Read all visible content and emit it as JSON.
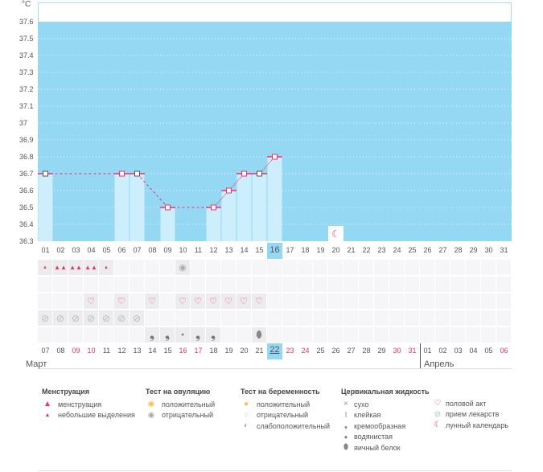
{
  "chart": {
    "unit": "°C",
    "y_ticks": [
      "37.6",
      "37.5",
      "37.4",
      "37.3",
      "37.2",
      "37.1",
      "37",
      "36.9",
      "36.8",
      "36.7",
      "36.6",
      "36.5",
      "36.4",
      "36.3"
    ],
    "days": [
      "01",
      "02",
      "03",
      "04",
      "05",
      "06",
      "07",
      "08",
      "09",
      "10",
      "11",
      "12",
      "13",
      "14",
      "15",
      "16",
      "17",
      "18",
      "19",
      "20",
      "21",
      "22",
      "23",
      "24",
      "25",
      "26",
      "27",
      "28",
      "29",
      "30",
      "31"
    ],
    "selected_day": "16",
    "temps": {
      "01": 36.7,
      "06": 36.7,
      "07": 36.7,
      "09": 36.5,
      "12": 36.5,
      "13": 36.6,
      "14": 36.7,
      "15": 36.7,
      "16": 36.8
    },
    "moon_day": "20"
  },
  "grid": {
    "dates": [
      {
        "d": "07"
      },
      {
        "d": "08"
      },
      {
        "d": "09",
        "red": true
      },
      {
        "d": "10",
        "red": true
      },
      {
        "d": "11"
      },
      {
        "d": "12"
      },
      {
        "d": "13"
      },
      {
        "d": "14"
      },
      {
        "d": "15"
      },
      {
        "d": "16",
        "red": true
      },
      {
        "d": "17",
        "red": true
      },
      {
        "d": "18"
      },
      {
        "d": "19"
      },
      {
        "d": "20"
      },
      {
        "d": "21"
      },
      {
        "d": "22",
        "sel": true
      },
      {
        "d": "23",
        "red": true
      },
      {
        "d": "24",
        "red": true
      },
      {
        "d": "25"
      },
      {
        "d": "26"
      },
      {
        "d": "27"
      },
      {
        "d": "28"
      },
      {
        "d": "29"
      },
      {
        "d": "30",
        "red": true
      },
      {
        "d": "31",
        "red": true
      },
      {
        "d": "01"
      },
      {
        "d": "02"
      },
      {
        "d": "03"
      },
      {
        "d": "04"
      },
      {
        "d": "05"
      },
      {
        "d": "06",
        "red": true
      }
    ],
    "rows": [
      {
        "name": "menstruation-row",
        "cells": {
          "0": "spot",
          "1": "mens",
          "2": "mens",
          "3": "mens",
          "4": "spot",
          "9": "ovu-neg"
        }
      },
      {
        "name": "pregnancy-row",
        "cells": {}
      },
      {
        "name": "sex-row",
        "cells": {
          "3": "heart",
          "5": "heart",
          "7": "heart",
          "9": "heart",
          "10": "heart",
          "11": "heart",
          "12": "heart",
          "13": "heart",
          "14": "heart"
        }
      },
      {
        "name": "pill-row",
        "cells": {
          "0": "pill",
          "1": "pill",
          "2": "pill",
          "3": "pill",
          "4": "pill",
          "5": "pill",
          "6": "pill"
        }
      },
      {
        "name": "fluid-row",
        "cells": {
          "7": "cream",
          "8": "cream",
          "9": "watery",
          "10": "cream",
          "11": "cream",
          "14": "egg"
        }
      }
    ],
    "month1": "Март",
    "month2": "Апрель"
  },
  "legend": {
    "mens": {
      "title": "Менструация",
      "items": [
        "менструация",
        "небольшие выделения"
      ]
    },
    "ovu": {
      "title": "Тест на овуляцию",
      "items": [
        "положительный",
        "отрицательный"
      ]
    },
    "preg": {
      "title": "Тест на беременность",
      "items": [
        "положительный",
        "отрицательный",
        "слабоположительный"
      ]
    },
    "fluid": {
      "title": "Цервикальная жидкость",
      "items": [
        "сухо",
        "клейкая",
        "кремообразная",
        "водянистая",
        "яичный белок"
      ]
    },
    "other": {
      "items": [
        "половой акт",
        "прием лекарств",
        "лунный календарь"
      ]
    }
  },
  "colors": {
    "plot": "#95d8f3",
    "bar": "#cdeefc",
    "line": "#f0306a"
  }
}
